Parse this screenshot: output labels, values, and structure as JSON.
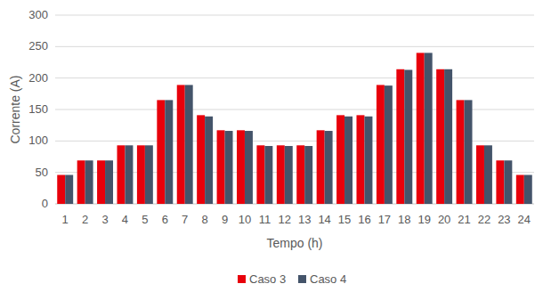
{
  "chart_data": {
    "type": "bar",
    "x_label": "Tempo (h)",
    "y_label": "Corrente (A)",
    "categories": [
      "1",
      "2",
      "3",
      "4",
      "5",
      "6",
      "7",
      "8",
      "9",
      "10",
      "11",
      "12",
      "13",
      "14",
      "15",
      "16",
      "17",
      "18",
      "19",
      "20",
      "21",
      "22",
      "23",
      "24"
    ],
    "series": [
      {
        "name": "Caso 3",
        "color": "#e8000b",
        "values": [
          46,
          69,
          69,
          93,
          93,
          165,
          189,
          141,
          117,
          117,
          93,
          93,
          93,
          117,
          141,
          141,
          189,
          214,
          240,
          214,
          165,
          93,
          69,
          46
        ]
      },
      {
        "name": "Caso 4",
        "color": "#44546a",
        "values": [
          46,
          69,
          69,
          93,
          93,
          165,
          189,
          139,
          116,
          116,
          92,
          92,
          92,
          116,
          139,
          139,
          188,
          213,
          240,
          214,
          165,
          93,
          69,
          46
        ]
      }
    ],
    "ylim": [
      0,
      300
    ],
    "yticks": [
      0,
      50,
      100,
      150,
      200,
      250,
      300
    ],
    "grid": true,
    "legend": "bottom"
  }
}
